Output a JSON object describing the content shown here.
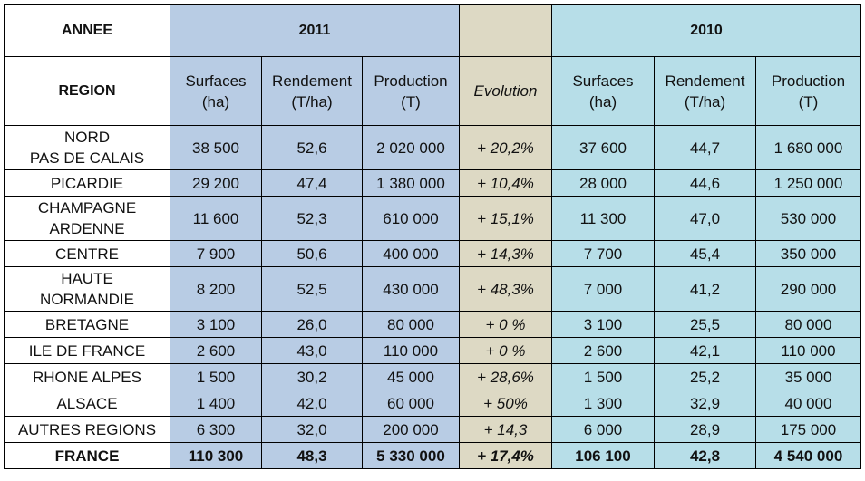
{
  "header": {
    "annee_label": "ANNEE",
    "year_2011": "2011",
    "year_2010": "2010",
    "region_label": "REGION",
    "col_surfaces": "Surfaces\n(ha)",
    "col_rendement": "Rendement\n(T/ha)",
    "col_production": "Production\n(T)",
    "col_evolution": "Evolution"
  },
  "rows": [
    {
      "region": "NORD\nPAS DE CALAIS",
      "s2011": "38 500",
      "r2011": "52,6",
      "p2011": "2 020 000",
      "evolution": "+ 20,2%",
      "s2010": "37 600",
      "r2010": "44,7",
      "p2010": "1 680 000"
    },
    {
      "region": "PICARDIE",
      "s2011": "29 200",
      "r2011": "47,4",
      "p2011": "1 380 000",
      "evolution": "+ 10,4%",
      "s2010": "28 000",
      "r2010": "44,6",
      "p2010": "1 250 000"
    },
    {
      "region": "CHAMPAGNE\nARDENNE",
      "s2011": "11 600",
      "r2011": "52,3",
      "p2011": "610 000",
      "evolution": "+ 15,1%",
      "s2010": "11 300",
      "r2010": "47,0",
      "p2010": "530 000"
    },
    {
      "region": "CENTRE",
      "s2011": "7 900",
      "r2011": "50,6",
      "p2011": "400 000",
      "evolution": "+ 14,3%",
      "s2010": "7 700",
      "r2010": "45,4",
      "p2010": "350 000"
    },
    {
      "region": "HAUTE\nNORMANDIE",
      "s2011": "8 200",
      "r2011": "52,5",
      "p2011": "430 000",
      "evolution": "+ 48,3%",
      "s2010": "7 000",
      "r2010": "41,2",
      "p2010": "290 000"
    },
    {
      "region": "BRETAGNE",
      "s2011": "3 100",
      "r2011": "26,0",
      "p2011": "80 000",
      "evolution": "+ 0 %",
      "s2010": "3 100",
      "r2010": "25,5",
      "p2010": "80 000"
    },
    {
      "region": "ILE DE FRANCE",
      "s2011": "2 600",
      "r2011": "43,0",
      "p2011": "110 000",
      "evolution": "+ 0 %",
      "s2010": "2 600",
      "r2010": "42,1",
      "p2010": "110 000"
    },
    {
      "region": "RHONE ALPES",
      "s2011": "1 500",
      "r2011": "30,2",
      "p2011": "45 000",
      "evolution": "+ 28,6%",
      "s2010": "1 500",
      "r2010": "25,2",
      "p2010": "35 000"
    },
    {
      "region": "ALSACE",
      "s2011": "1 400",
      "r2011": "42,0",
      "p2011": "60 000",
      "evolution": "+ 50%",
      "s2010": "1 300",
      "r2010": "32,9",
      "p2010": "40 000"
    },
    {
      "region": "AUTRES REGIONS",
      "s2011": "6 300",
      "r2011": "32,0",
      "p2011": "200 000",
      "evolution": "+ 14,3",
      "s2010": "6 000",
      "r2010": "28,9",
      "p2010": "175 000"
    }
  ],
  "total": {
    "region": "FRANCE",
    "s2011": "110 300",
    "r2011": "48,3",
    "p2011": "5 330 000",
    "evolution": "+ 17,4%",
    "s2010": "106 100",
    "r2010": "42,8",
    "p2010": "4 540 000"
  },
  "colors": {
    "header_2011": "#b8cce4",
    "evolution": "#ddd9c4",
    "header_2010": "#b7dee8"
  }
}
